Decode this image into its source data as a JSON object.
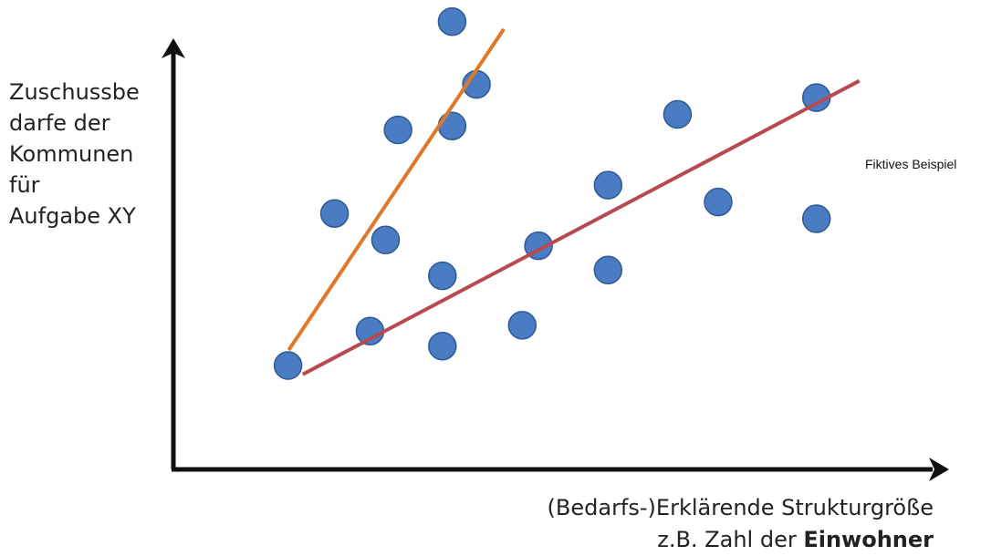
{
  "chart_data": {
    "type": "scatter",
    "title": "",
    "ylabel_lines": [
      "Zuschussbe",
      "darfe der",
      "Kommunen",
      "für",
      "Aufgabe XY"
    ],
    "xlabel": {
      "line1": "(Bedarfs-)Erklärende Strukturgröße",
      "line2_prefix": "z.B. Zahl der ",
      "line2_bold": "Einwohner"
    },
    "annotation": "Fiktives Beispiel",
    "xlim": [
      0,
      100
    ],
    "ylim": [
      0,
      100
    ],
    "grid": false,
    "axis_color": "#111111",
    "point_color": "#4a7cc3",
    "point_stroke": "#2f5a93",
    "points": [
      {
        "x": 15.5,
        "y": 23.5
      },
      {
        "x": 21.8,
        "y": 57.9
      },
      {
        "x": 26.6,
        "y": 31.3
      },
      {
        "x": 28.7,
        "y": 51.9
      },
      {
        "x": 30.4,
        "y": 76.8
      },
      {
        "x": 36.4,
        "y": 27.9
      },
      {
        "x": 36.4,
        "y": 43.8
      },
      {
        "x": 37.7,
        "y": 77.7
      },
      {
        "x": 37.7,
        "y": 101.3
      },
      {
        "x": 41.0,
        "y": 87.1
      },
      {
        "x": 47.2,
        "y": 32.6
      },
      {
        "x": 49.4,
        "y": 50.6
      },
      {
        "x": 58.8,
        "y": 45.1
      },
      {
        "x": 58.8,
        "y": 64.3
      },
      {
        "x": 68.2,
        "y": 80.3
      },
      {
        "x": 73.7,
        "y": 60.5
      },
      {
        "x": 87.0,
        "y": 84.1
      },
      {
        "x": 87.0,
        "y": 56.7
      }
    ],
    "lines": [
      {
        "color": "#e0782a",
        "from": {
          "x": 15.6,
          "y": 27.0
        },
        "to": {
          "x": 44.7,
          "y": 99.6
        }
      },
      {
        "color": "#b84a4f",
        "from": {
          "x": 17.5,
          "y": 21.5
        },
        "to": {
          "x": 92.8,
          "y": 87.9
        }
      }
    ]
  }
}
